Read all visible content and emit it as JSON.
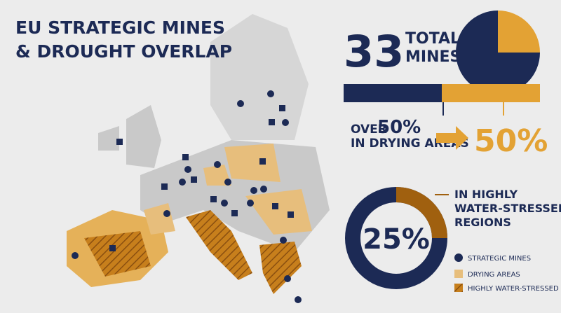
{
  "title": [
    "EU STRATEGIC MINES",
    "& DROUGHT OVERLAP"
  ],
  "total": {
    "number": "33",
    "label": [
      "TOTAL",
      "MINES"
    ]
  },
  "pie": {
    "values": [
      75,
      25
    ],
    "colors": [
      "#1c2a55",
      "#e3a234"
    ]
  },
  "bar": {
    "values": [
      50,
      50
    ],
    "colors": [
      "#1c2a55",
      "#e3a234"
    ]
  },
  "drying": {
    "prefix": "OVER",
    "share": 50,
    "share_label": "50%",
    "label": "IN DRYING AREAS"
  },
  "water": {
    "label": [
      "IN HIGHLY",
      "WATER-STRESSED",
      "REGIONS"
    ],
    "value": 25,
    "value_label": "25%",
    "colors": [
      "#1c2a55",
      "#a0600f"
    ]
  },
  "legend": [
    "STRATEGIC MINES",
    "DRYING AREAS",
    "HIGHLY WATER-STRESSED"
  ]
}
